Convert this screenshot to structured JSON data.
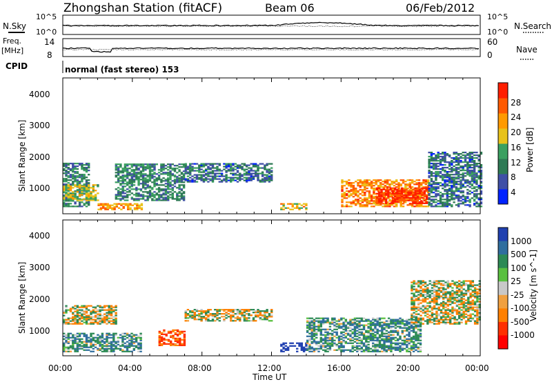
{
  "header": {
    "title": "Zhongshan Station (fitACF)",
    "beam": "Beam 06",
    "date": "06/Feb/2012"
  },
  "noise_panel": {
    "left_label": "N.Sky",
    "right_label": "N.Search",
    "left_ticks": [
      "10^5",
      "10^0"
    ],
    "right_ticks": [
      "10^5",
      "10^0"
    ]
  },
  "freq_panel": {
    "left_label_1": "Freq.",
    "left_label_2": "[MHz]",
    "left_ticks": [
      "14",
      "8"
    ],
    "right_label": "Nave",
    "right_ticks": [
      "60",
      "0"
    ]
  },
  "cpid": {
    "label": "CPID",
    "mode": "normal (fast stereo) 153"
  },
  "power_panel": {
    "ylabel": "Slant Range [km]",
    "yticks": [
      "4000",
      "3000",
      "2000",
      "1000"
    ],
    "colorbar_title": "Power [dB]",
    "colorbar_ticks": [
      "28",
      "24",
      "20",
      "16",
      "12",
      "8",
      "4"
    ],
    "colors": [
      "#0022ff",
      "#3f4fa6",
      "#2e7a55",
      "#3aa060",
      "#e8c21a",
      "#ff9a00",
      "#ff5a00",
      "#ff1e00"
    ]
  },
  "velocity_panel": {
    "ylabel": "Slant Range [km]",
    "yticks": [
      "4000",
      "3000",
      "2000",
      "1000"
    ],
    "colorbar_title": "Velocity [m s^-1]",
    "colorbar_ticks": [
      "1000",
      "500",
      "100",
      "25",
      "-25",
      "-100",
      "-500",
      "-1000"
    ],
    "colors": [
      "#2040b0",
      "#2f6e9e",
      "#2c8a55",
      "#5ac040",
      "#c8c8c8",
      "#f0a040",
      "#ff8000",
      "#ff3000",
      "#ff0000"
    ]
  },
  "x_axis": {
    "ticks": [
      "00:00",
      "04:00",
      "08:00",
      "12:00",
      "16:00",
      "20:00",
      "00:00"
    ],
    "label": "Time UT"
  },
  "chart_data": [
    {
      "type": "heatmap",
      "title": "Power [dB]",
      "xlabel": "Time UT",
      "ylabel": "Slant Range [km]",
      "xlim": [
        "00:00",
        "24:00"
      ],
      "ylim": [
        180,
        4600
      ],
      "colorbar_range": [
        0,
        30
      ],
      "value_bands": [
        {
          "t_start": 0.0,
          "t_end": 1.5,
          "r_start": 400,
          "r_end": 1800,
          "value": 10
        },
        {
          "t_start": 0.0,
          "t_end": 2.0,
          "r_start": 600,
          "r_end": 1100,
          "value": 16
        },
        {
          "t_start": 2.0,
          "t_end": 4.5,
          "r_start": 300,
          "r_end": 500,
          "value": 20
        },
        {
          "t_start": 3.0,
          "t_end": 7.0,
          "r_start": 600,
          "r_end": 1800,
          "value": 10
        },
        {
          "t_start": 7.0,
          "t_end": 12.0,
          "r_start": 1200,
          "r_end": 1800,
          "value": 8
        },
        {
          "t_start": 12.5,
          "t_end": 14.0,
          "r_start": 300,
          "r_end": 500,
          "value": 18
        },
        {
          "t_start": 16.0,
          "t_end": 21.0,
          "r_start": 400,
          "r_end": 1300,
          "value": 22
        },
        {
          "t_start": 18.0,
          "t_end": 21.0,
          "r_start": 500,
          "r_end": 1000,
          "value": 28
        },
        {
          "t_start": 21.0,
          "t_end": 24.0,
          "r_start": 400,
          "r_end": 2200,
          "value": 8
        }
      ]
    },
    {
      "type": "heatmap",
      "title": "Velocity [m s^-1]",
      "xlabel": "Time UT",
      "ylabel": "Slant Range [km]",
      "xlim": [
        "00:00",
        "24:00"
      ],
      "ylim": [
        180,
        4600
      ],
      "colorbar_range": [
        -1000,
        1000
      ],
      "value_bands": [
        {
          "t_start": 0.0,
          "t_end": 3.0,
          "r_start": 1200,
          "r_end": 1800,
          "value": 0
        },
        {
          "t_start": 0.0,
          "t_end": 4.5,
          "r_start": 300,
          "r_end": 900,
          "value": 200
        },
        {
          "t_start": 5.5,
          "t_end": 7.0,
          "r_start": 500,
          "r_end": 1000,
          "value": -300
        },
        {
          "t_start": 7.0,
          "t_end": 12.0,
          "r_start": 1300,
          "r_end": 1700,
          "value": 0
        },
        {
          "t_start": 12.5,
          "t_end": 14.0,
          "r_start": 300,
          "r_end": 600,
          "value": 800
        },
        {
          "t_start": 14.0,
          "t_end": 20.5,
          "r_start": 300,
          "r_end": 1400,
          "value": 200
        },
        {
          "t_start": 20.0,
          "t_end": 24.0,
          "r_start": 1200,
          "r_end": 2600,
          "value": 0
        }
      ]
    }
  ]
}
